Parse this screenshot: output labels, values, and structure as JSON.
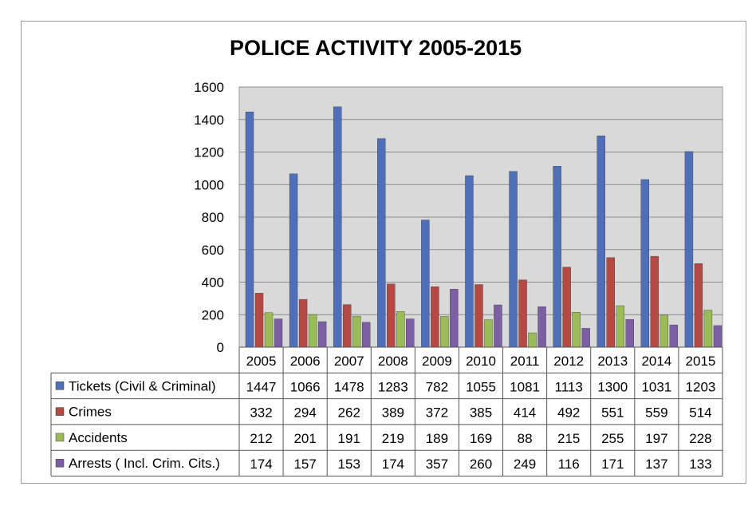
{
  "chart_data": {
    "type": "bar",
    "title": "POLICE ACTIVITY 2005-2015",
    "categories": [
      "2005",
      "2006",
      "2007",
      "2008",
      "2009",
      "2010",
      "2011",
      "2012",
      "2013",
      "2014",
      "2015"
    ],
    "ylim": [
      0,
      1600
    ],
    "yticks": [
      "0",
      "200",
      "400",
      "600",
      "800",
      "1000",
      "1200",
      "1400",
      "1600"
    ],
    "grid": true,
    "legend": "data-table",
    "series": [
      {
        "name": "Tickets (Civil & Criminal)",
        "color": "#4f6fb8",
        "values": [
          1447,
          1066,
          1478,
          1283,
          782,
          1055,
          1081,
          1113,
          1300,
          1031,
          1203
        ]
      },
      {
        "name": "Crimes",
        "color": "#b54a45",
        "values": [
          332,
          294,
          262,
          389,
          372,
          385,
          414,
          492,
          551,
          559,
          514
        ]
      },
      {
        "name": "Accidents",
        "color": "#9bbb59",
        "values": [
          212,
          201,
          191,
          219,
          189,
          169,
          88,
          215,
          255,
          197,
          228
        ]
      },
      {
        "name": "Arrests ( Incl. Crim. Cits.)",
        "color": "#7c5fa3",
        "values": [
          174,
          157,
          153,
          174,
          357,
          260,
          249,
          116,
          171,
          137,
          133
        ]
      }
    ]
  }
}
